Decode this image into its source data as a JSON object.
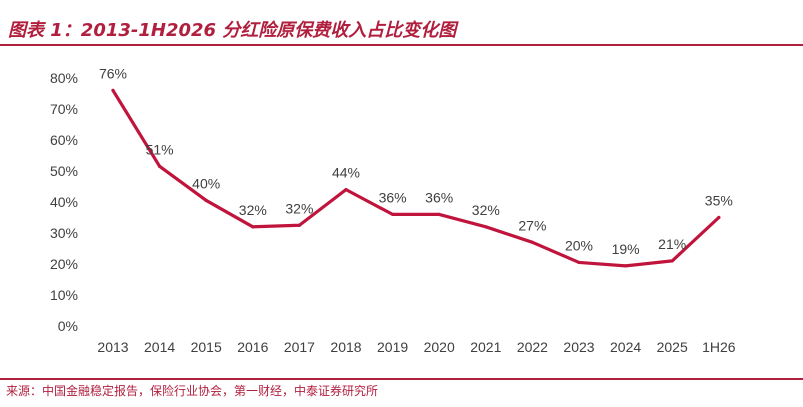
{
  "header": {
    "title": "图表 1：2013-1H2026 分红险原保费收入占比变化图"
  },
  "footer": {
    "source": "来源：中国金融稳定报告，保险行业协会，第一财经，中泰证券研究所"
  },
  "colors": {
    "accent": "#b11f3f",
    "line": "#c0143c",
    "text": "#404040"
  },
  "chart_data": {
    "type": "line",
    "categories": [
      "2013",
      "2014",
      "2015",
      "2016",
      "2017",
      "2018",
      "2019",
      "2020",
      "2021",
      "2022",
      "2023",
      "2024",
      "2025",
      "1H26"
    ],
    "series": [
      {
        "values": [
          76,
          51,
          40,
          32,
          32,
          44,
          36,
          36,
          32,
          27,
          20,
          19,
          21,
          35
        ],
        "value_labels": [
          "76%",
          "51%",
          "40%",
          "32%",
          "32%",
          "44%",
          "36%",
          "36%",
          "32%",
          "27%",
          "20%",
          "19%",
          "21%",
          "35%"
        ],
        "plot_values": [
          76,
          51.5,
          40.5,
          32,
          32.5,
          44,
          36,
          36,
          32,
          27,
          20.5,
          19.4,
          21,
          35
        ]
      }
    ],
    "yticks": [
      0,
      10,
      20,
      30,
      40,
      50,
      60,
      70,
      80
    ],
    "ytick_labels": [
      "0%",
      "10%",
      "20%",
      "30%",
      "40%",
      "50%",
      "60%",
      "70%",
      "80%"
    ],
    "ylim": [
      0,
      80
    ],
    "grid": false,
    "legend": "none"
  }
}
